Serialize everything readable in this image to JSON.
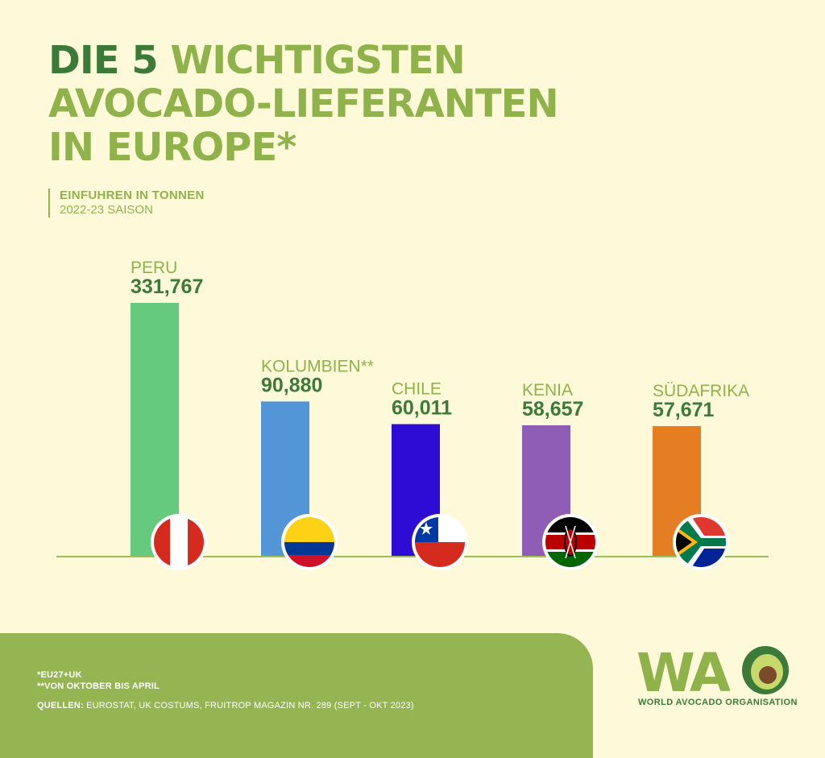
{
  "title": {
    "line1_dark": "DIE 5",
    "line1_light": "WICHTIGSTEN",
    "line2": "AVOCADO-LIEFERANTEN",
    "line3": "IN EUROPE*"
  },
  "subtitle": {
    "line1": "EINFUHREN IN TONNEN",
    "line2": "2022-23 SAISON"
  },
  "chart_data": {
    "type": "bar",
    "title": "DIE 5 WICHTIGSTEN AVOCADO-LIEFERANTEN IN EUROPE*",
    "ylabel": "EINFUHREN IN TONNEN",
    "categories": [
      "PERU",
      "KOLUMBIEN**",
      "CHILE",
      "KENIA",
      "SÜDAFRIKA"
    ],
    "values": [
      331767,
      90880,
      60011,
      58657,
      57671
    ],
    "value_labels": [
      "331,767",
      "90,880",
      "60,011",
      "58,657",
      "57,671"
    ],
    "colors": [
      "#66ca7e",
      "#5296d8",
      "#2f0bd6",
      "#8f5db5",
      "#e57d22"
    ],
    "flags": [
      "peru-flag-icon",
      "colombia-flag-icon",
      "chile-flag-icon",
      "kenya-flag-icon",
      "south-africa-flag-icon"
    ],
    "scale_note": "bar heights not proportional to values",
    "grid": false
  },
  "footer": {
    "note1": "*EU27+UK",
    "note2": "**VON OKTOBER BIS APRIL",
    "sources_label": "QUELLEN:",
    "sources_text": "EUROSTAT, UK COSTUMS, FRUITROP MAGAZIN NR. 289 (SEPT - OKT 2023)"
  },
  "logo": {
    "letters": "WAO",
    "name": "WORLD AVOCADO ORGANISATION",
    "colors": {
      "green": "#8fb34a",
      "dark": "#3c7a3a",
      "pit": "#7a4a2a"
    }
  },
  "colors": {
    "background": "#fdf9d9",
    "accent": "#8fb34a",
    "dark_green": "#3c7a3a",
    "axis": "#9bbf5a",
    "category_label": "#8fb34a",
    "value_label": "#3c7a3a"
  }
}
